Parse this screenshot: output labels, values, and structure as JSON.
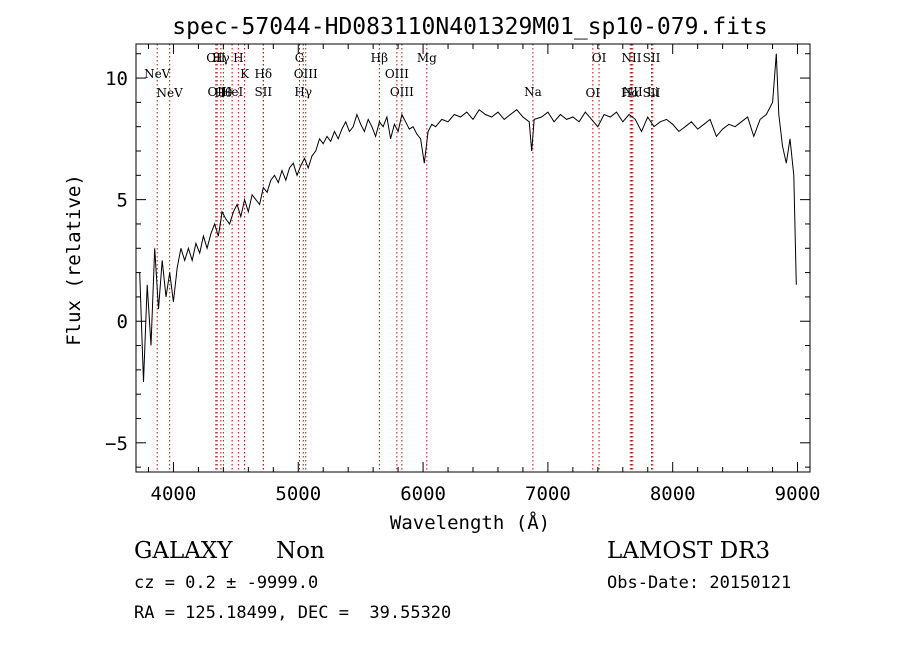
{
  "chart_data": {
    "type": "line",
    "title": "spec-57044-HD083110N401329M01_sp10-079.fits",
    "xlabel": "Wavelength (Å)",
    "ylabel": "Flux (relative)",
    "xlim": [
      3700,
      9100
    ],
    "ylim": [
      -6.2,
      11.4
    ],
    "xticks": [
      4000,
      5000,
      6000,
      7000,
      8000,
      9000
    ],
    "yticks": [
      -5,
      0,
      5,
      10
    ],
    "line_color": "#000000",
    "marker_color": "#cc0000",
    "series": [
      {
        "name": "spectrum",
        "x": [
          3730,
          3760,
          3790,
          3820,
          3850,
          3880,
          3910,
          3940,
          3970,
          4000,
          4030,
          4060,
          4090,
          4120,
          4150,
          4180,
          4210,
          4240,
          4270,
          4300,
          4330,
          4360,
          4390,
          4420,
          4450,
          4480,
          4510,
          4540,
          4570,
          4600,
          4630,
          4660,
          4690,
          4720,
          4750,
          4780,
          4810,
          4840,
          4870,
          4900,
          4930,
          4960,
          4990,
          5020,
          5050,
          5080,
          5110,
          5140,
          5170,
          5200,
          5230,
          5260,
          5290,
          5320,
          5350,
          5380,
          5410,
          5440,
          5470,
          5500,
          5530,
          5560,
          5590,
          5620,
          5650,
          5680,
          5710,
          5740,
          5770,
          5800,
          5830,
          5860,
          5890,
          5920,
          5950,
          5980,
          6010,
          6040,
          6070,
          6100,
          6150,
          6200,
          6250,
          6300,
          6350,
          6400,
          6450,
          6500,
          6550,
          6600,
          6650,
          6700,
          6750,
          6800,
          6850,
          6870,
          6890,
          6950,
          7000,
          7050,
          7100,
          7150,
          7200,
          7250,
          7300,
          7350,
          7400,
          7450,
          7500,
          7550,
          7600,
          7650,
          7700,
          7750,
          7800,
          7850,
          7900,
          7950,
          8000,
          8050,
          8100,
          8150,
          8200,
          8250,
          8300,
          8350,
          8400,
          8450,
          8500,
          8550,
          8600,
          8650,
          8700,
          8750,
          8800,
          8830,
          8850,
          8880,
          8910,
          8940,
          8970,
          8990
        ],
        "y": [
          2.0,
          -2.5,
          1.5,
          -1.0,
          3.0,
          0.5,
          2.5,
          1.0,
          2.0,
          0.8,
          2.2,
          3.0,
          2.5,
          3.0,
          2.5,
          3.2,
          2.8,
          3.5,
          3.0,
          3.6,
          4.0,
          3.5,
          4.5,
          4.2,
          4.0,
          4.5,
          4.8,
          4.3,
          5.0,
          4.5,
          5.2,
          5.0,
          4.8,
          5.5,
          5.3,
          5.8,
          6.0,
          5.7,
          6.2,
          5.8,
          6.3,
          6.5,
          6.0,
          6.4,
          6.7,
          6.3,
          6.8,
          7.0,
          7.5,
          7.3,
          7.6,
          7.4,
          7.8,
          7.5,
          7.9,
          8.2,
          7.8,
          8.0,
          8.5,
          8.1,
          7.8,
          8.3,
          8.0,
          7.6,
          8.2,
          8.0,
          8.4,
          7.5,
          8.1,
          7.8,
          8.5,
          8.2,
          7.9,
          8.0,
          7.7,
          7.5,
          6.5,
          7.8,
          8.1,
          8.0,
          8.3,
          8.2,
          8.5,
          8.4,
          8.6,
          8.3,
          8.7,
          8.5,
          8.4,
          8.6,
          8.3,
          8.5,
          8.7,
          8.4,
          8.2,
          7.0,
          8.3,
          8.4,
          8.6,
          8.2,
          8.5,
          8.3,
          8.4,
          8.2,
          8.6,
          8.3,
          8.0,
          8.5,
          8.4,
          8.6,
          8.2,
          8.5,
          8.3,
          7.8,
          8.4,
          8.0,
          8.2,
          8.3,
          8.1,
          7.8,
          8.0,
          8.2,
          7.9,
          8.1,
          8.3,
          7.6,
          7.9,
          8.1,
          8.0,
          8.2,
          8.4,
          7.6,
          8.3,
          8.5,
          9.0,
          11.0,
          8.5,
          7.2,
          6.5,
          7.5,
          6.0,
          1.5
        ]
      }
    ],
    "lines": [
      {
        "label": "NeV",
        "x": 3870,
        "row": 1
      },
      {
        "label": "NeV",
        "x": 3970,
        "row": 2
      },
      {
        "label": "OII",
        "x": 4340,
        "row": 0
      },
      {
        "label": "OII",
        "x": 4350,
        "row": 3
      },
      {
        "label": "Hγ",
        "x": 4380,
        "row": 0
      },
      {
        "label": "Hθ",
        "x": 4400,
        "row": 2
      },
      {
        "label": "HeI",
        "x": 4470,
        "row": 3
      },
      {
        "label": "H",
        "x": 4520,
        "row": 0
      },
      {
        "label": "K",
        "x": 4570,
        "row": 1
      },
      {
        "label": "Hδ",
        "x": 4720,
        "row": 1
      },
      {
        "label": "SII",
        "x": 4720,
        "row": 3
      },
      {
        "label": "G",
        "x": 5010,
        "row": 0
      },
      {
        "label": "OIII",
        "x": 5060,
        "row": 1
      },
      {
        "label": "Hγ",
        "x": 5040,
        "row": 3
      },
      {
        "label": "Hβ",
        "x": 5650,
        "row": 0
      },
      {
        "label": "OIII",
        "x": 5790,
        "row": 1
      },
      {
        "label": "OIII",
        "x": 5830,
        "row": 3
      },
      {
        "label": "Mg",
        "x": 6030,
        "row": 0
      },
      {
        "label": "Na",
        "x": 6880,
        "row": 3
      },
      {
        "label": "OI",
        "x": 7410,
        "row": 0
      },
      {
        "label": "OI",
        "x": 7360,
        "row": 2
      },
      {
        "label": "NII",
        "x": 7670,
        "row": 0
      },
      {
        "label": "Hα",
        "x": 7660,
        "row": 2
      },
      {
        "label": "NII",
        "x": 7680,
        "row": 3
      },
      {
        "label": "SII",
        "x": 7830,
        "row": 0
      },
      {
        "label": "SII",
        "x": 7830,
        "row": 2
      },
      {
        "label": "Li",
        "x": 7840,
        "row": 3
      }
    ]
  },
  "footer": {
    "class_label": "GALAXY",
    "subclass_label": "Non",
    "survey": "LAMOST DR3",
    "cz": "cz = 0.2 ± -9999.0",
    "obs_date": "Obs-Date: 20150121",
    "coords": "RA = 125.18499, DEC =  39.55320"
  }
}
